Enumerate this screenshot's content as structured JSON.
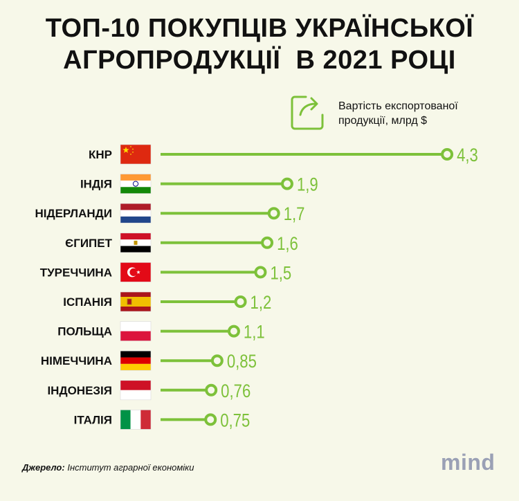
{
  "title": {
    "line1": "ТОП-10 ПОКУПЦІВ УКРАЇНСЬКОЇ",
    "line2": "АГРОПРОДУКЦІЇ  В 2021 РОЦІ"
  },
  "legend": {
    "line1": "Вартість експортованої",
    "line2": "продукції, млрд $",
    "icon": "export-arrow-icon"
  },
  "colors": {
    "accent": "#7dc13a",
    "text": "#111111",
    "background": "#f7f8e9"
  },
  "chart_data": {
    "type": "bar",
    "categories": [
      "КНР",
      "ІНДІЯ",
      "НІДЕРЛАНДИ",
      "ЄГИПЕТ",
      "ТУРЕЧЧИНА",
      "ІСПАНІЯ",
      "ПОЛЬЩА",
      "НІМЕЧЧИНА",
      "ІНДОНЕЗІЯ",
      "ІТАЛІЯ"
    ],
    "values": [
      4.3,
      1.9,
      1.7,
      1.6,
      1.5,
      1.2,
      1.1,
      0.85,
      0.76,
      0.75
    ],
    "value_labels": [
      "4,3",
      "1,9",
      "1,7",
      "1,6",
      "1,5",
      "1,2",
      "1,1",
      "0,85",
      "0,76",
      "0,75"
    ],
    "flags": [
      "china-flag",
      "india-flag",
      "netherlands-flag",
      "egypt-flag",
      "turkey-flag",
      "spain-flag",
      "poland-flag",
      "germany-flag",
      "indonesia-flag",
      "italy-flag"
    ],
    "orientation": "horizontal",
    "grid": false
  },
  "source": {
    "label": "Джерело:",
    "text": "Інститут аграрної економіки"
  },
  "logo": "mind"
}
